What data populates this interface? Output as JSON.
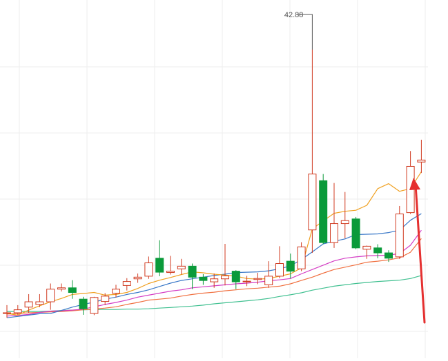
{
  "chart_data": {
    "type": "candlestick",
    "title": "",
    "xlabel": "",
    "ylabel": "",
    "grid": true,
    "ylim": [
      33.5,
      43.5
    ],
    "peak_label": "42.88",
    "colors": {
      "up": "#d0391f",
      "down": "#0a9a3a",
      "ma_orange": "#f0a020",
      "ma_blue": "#3a78c8",
      "ma_magenta": "#d43cc4",
      "ma_red": "#f07040",
      "ma_green": "#40c090",
      "arrow": "#e53030",
      "grid": "#eeeeee"
    },
    "candles": [
      {
        "o": 34.97,
        "c": 34.97,
        "h": 35.2,
        "l": 34.82
      },
      {
        "o": 34.97,
        "c": 35.06,
        "h": 35.2,
        "l": 34.91
      },
      {
        "o": 35.14,
        "c": 35.3,
        "h": 35.53,
        "l": 34.97
      },
      {
        "o": 35.22,
        "c": 35.3,
        "h": 35.53,
        "l": 35.14
      },
      {
        "o": 35.3,
        "c": 35.68,
        "h": 35.85,
        "l": 35.06
      },
      {
        "o": 35.68,
        "c": 35.72,
        "h": 35.85,
        "l": 35.61
      },
      {
        "o": 35.72,
        "c": 35.58,
        "h": 35.95,
        "l": 35.39
      },
      {
        "o": 35.38,
        "c": 35.09,
        "h": 35.45,
        "l": 34.91
      },
      {
        "o": 34.95,
        "c": 35.43,
        "h": 35.45,
        "l": 34.9
      },
      {
        "o": 35.31,
        "c": 35.47,
        "h": 35.56,
        "l": 35.2
      },
      {
        "o": 35.56,
        "c": 35.68,
        "h": 35.81,
        "l": 35.43
      },
      {
        "o": 35.79,
        "c": 35.91,
        "h": 36.01,
        "l": 35.64
      },
      {
        "o": 35.99,
        "c": 36.04,
        "h": 36.15,
        "l": 35.87
      },
      {
        "o": 36.07,
        "c": 36.47,
        "h": 36.66,
        "l": 35.99
      },
      {
        "o": 36.61,
        "c": 36.19,
        "h": 37.15,
        "l": 36.07
      },
      {
        "o": 36.18,
        "c": 36.22,
        "h": 36.68,
        "l": 36.12
      },
      {
        "o": 36.29,
        "c": 36.37,
        "h": 36.59,
        "l": 36.12
      },
      {
        "o": 36.37,
        "c": 36.04,
        "h": 36.45,
        "l": 35.68
      },
      {
        "o": 36.04,
        "c": 35.94,
        "h": 36.13,
        "l": 35.81
      },
      {
        "o": 35.9,
        "c": 35.99,
        "h": 36.15,
        "l": 35.72
      },
      {
        "o": 35.99,
        "c": 36.08,
        "h": 37.04,
        "l": 35.79
      },
      {
        "o": 36.22,
        "c": 35.9,
        "h": 36.25,
        "l": 35.68
      },
      {
        "o": 35.92,
        "c": 35.92,
        "h": 36.08,
        "l": 35.77
      },
      {
        "o": 35.97,
        "c": 36.0,
        "h": 36.17,
        "l": 35.83
      },
      {
        "o": 35.81,
        "c": 36.07,
        "h": 36.52,
        "l": 35.72
      },
      {
        "o": 36.07,
        "c": 36.45,
        "h": 36.97,
        "l": 36.01
      },
      {
        "o": 36.52,
        "c": 36.22,
        "h": 36.75,
        "l": 36.0
      },
      {
        "o": 36.29,
        "c": 36.95,
        "h": 37.09,
        "l": 36.22
      },
      {
        "o": 37.46,
        "c": 39.14,
        "h": 42.88,
        "l": 36.77
      },
      {
        "o": 38.94,
        "c": 37.08,
        "h": 39.14,
        "l": 37.03
      },
      {
        "o": 37.08,
        "c": 37.65,
        "h": 38.87,
        "l": 36.92
      },
      {
        "o": 37.65,
        "c": 37.74,
        "h": 38.6,
        "l": 37.21
      },
      {
        "o": 37.79,
        "c": 36.92,
        "h": 37.85,
        "l": 36.88
      },
      {
        "o": 36.88,
        "c": 36.97,
        "h": 36.99,
        "l": 36.59
      },
      {
        "o": 36.92,
        "c": 36.77,
        "h": 37.03,
        "l": 36.61
      },
      {
        "o": 36.77,
        "c": 36.61,
        "h": 36.85,
        "l": 36.5
      },
      {
        "o": 36.65,
        "c": 37.94,
        "h": 38.18,
        "l": 36.59
      },
      {
        "o": 37.98,
        "c": 39.37,
        "h": 39.83,
        "l": 37.94
      },
      {
        "o": 39.5,
        "c": 39.56,
        "h": 40.17,
        "l": 39.17
      }
    ],
    "moving_averages": [
      {
        "key": "ma_orange",
        "values": [
          34.95,
          34.9,
          35.05,
          35.18,
          35.3,
          35.4,
          35.52,
          35.55,
          35.58,
          35.5,
          35.52,
          35.58,
          35.7,
          35.85,
          35.95,
          36.03,
          36.12,
          36.2,
          36.17,
          36.13,
          36.1,
          36.07,
          36.0,
          35.98,
          36.0,
          36.07,
          36.14,
          36.32,
          37.49,
          37.73,
          37.96,
          38.02,
          38.05,
          38.2,
          38.7,
          38.85,
          38.62,
          38.7,
          39.21
        ]
      },
      {
        "key": "ma_blue",
        "values": [
          34.82,
          34.86,
          34.9,
          34.94,
          34.95,
          35.04,
          35.14,
          35.22,
          35.29,
          35.38,
          35.44,
          35.52,
          35.58,
          35.66,
          35.76,
          35.86,
          35.94,
          35.99,
          36.04,
          36.09,
          36.13,
          36.18,
          36.19,
          36.2,
          36.23,
          36.29,
          36.38,
          36.57,
          36.8,
          37.04,
          37.12,
          37.19,
          37.32,
          37.33,
          37.34,
          37.38,
          37.45,
          37.75,
          37.95
        ]
      },
      {
        "key": "ma_magenta",
        "values": [
          34.87,
          34.89,
          34.92,
          34.98,
          35.02,
          35.03,
          35.05,
          35.08,
          35.15,
          35.22,
          35.28,
          35.35,
          35.44,
          35.5,
          35.56,
          35.62,
          35.66,
          35.72,
          35.75,
          35.78,
          35.81,
          35.84,
          35.86,
          35.89,
          35.93,
          35.96,
          36.0,
          36.14,
          36.27,
          36.4,
          36.53,
          36.61,
          36.65,
          36.68,
          36.69,
          36.7,
          36.75,
          37.0,
          37.45
        ]
      },
      {
        "key": "ma_red",
        "values": [
          34.93,
          34.95,
          34.97,
          34.98,
          35.0,
          35.01,
          35.03,
          35.06,
          35.08,
          35.11,
          35.15,
          35.22,
          35.28,
          35.35,
          35.38,
          35.41,
          35.47,
          35.52,
          35.56,
          35.59,
          35.63,
          35.66,
          35.69,
          35.71,
          35.74,
          35.77,
          35.84,
          35.94,
          36.04,
          36.16,
          36.27,
          36.34,
          36.41,
          36.49,
          36.52,
          36.56,
          36.62,
          36.79,
          37.2
        ]
      },
      {
        "key": "ma_green",
        "values": [
          35.01,
          35.01,
          35.01,
          35.01,
          35.02,
          35.04,
          35.05,
          35.06,
          35.07,
          35.07,
          35.07,
          35.08,
          35.08,
          35.09,
          35.11,
          35.13,
          35.15,
          35.17,
          35.2,
          35.24,
          35.27,
          35.3,
          35.33,
          35.36,
          35.4,
          35.46,
          35.51,
          35.57,
          35.65,
          35.71,
          35.77,
          35.81,
          35.85,
          35.88,
          35.91,
          35.93,
          35.95,
          36.0,
          36.09
        ]
      }
    ]
  }
}
